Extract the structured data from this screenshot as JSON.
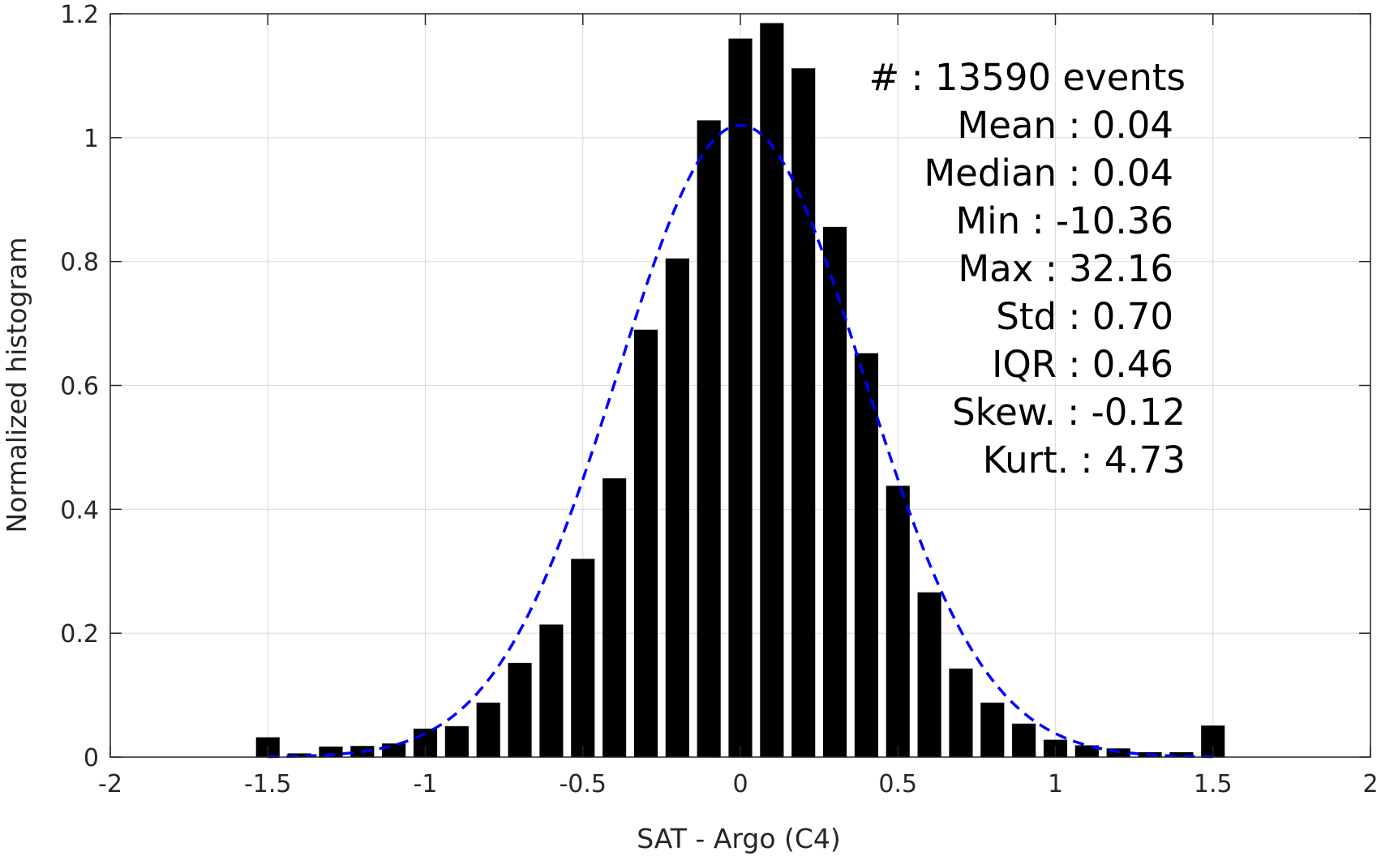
{
  "chart_data": {
    "type": "bar",
    "title": "",
    "xlabel": "SAT - Argo (C4)",
    "ylabel": "Normalized histogram",
    "xlim": [
      -2,
      2
    ],
    "ylim": [
      0,
      1.2
    ],
    "grid": true,
    "x_ticks": [
      "-2",
      "-1.5",
      "-1",
      "-0.5",
      "0",
      "0.5",
      "1",
      "1.5",
      "2"
    ],
    "y_ticks": [
      "0",
      "0.2",
      "0.4",
      "0.6",
      "0.8",
      "1",
      "1.2"
    ],
    "bar_color": "#000000",
    "fit_color": "#0000ff",
    "bins": {
      "x": [
        -1.5,
        -1.4,
        -1.3,
        -1.2,
        -1.1,
        -1.0,
        -0.9,
        -0.8,
        -0.7,
        -0.6,
        -0.5,
        -0.4,
        -0.3,
        -0.2,
        -0.1,
        0.0,
        0.1,
        0.2,
        0.3,
        0.4,
        0.5,
        0.6,
        0.7,
        0.8,
        0.9,
        1.0,
        1.1,
        1.2,
        1.3,
        1.4,
        1.5
      ],
      "values": [
        0.032,
        0.006,
        0.017,
        0.018,
        0.022,
        0.046,
        0.05,
        0.088,
        0.152,
        0.214,
        0.32,
        0.45,
        0.69,
        0.805,
        1.028,
        1.16,
        1.185,
        1.112,
        0.856,
        0.652,
        0.438,
        0.266,
        0.143,
        0.088,
        0.054,
        0.028,
        0.019,
        0.014,
        0.008,
        0.008,
        0.051
      ]
    },
    "fit": {
      "style": "dashed",
      "mean": 0.0,
      "std": 0.39,
      "peak": 1.02,
      "range": [
        -1.5,
        1.5
      ]
    },
    "annotation_lines": [
      "#  : 13590 events",
      "Mean : 0.04",
      "Median : 0.04",
      "Min : -10.36",
      "Max : 32.16",
      "Std : 0.70",
      "IQR : 0.46",
      "Skew. : -0.12",
      "Kurt. : 4.73"
    ]
  }
}
